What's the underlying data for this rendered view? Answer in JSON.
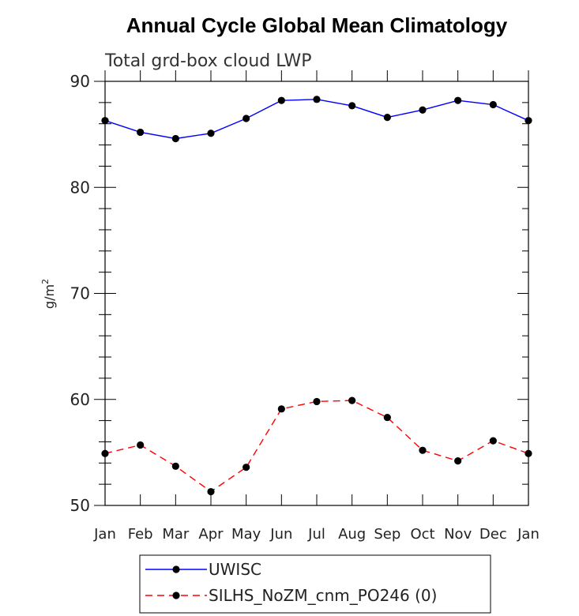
{
  "chart_data": {
    "type": "line",
    "title": "Annual Cycle Global Mean Climatology",
    "subtitle": "Total grd-box cloud LWP",
    "ylabel": "g/m",
    "ylabel_sup": "2",
    "ylim": [
      50,
      90
    ],
    "yticks": [
      50,
      60,
      70,
      80,
      90
    ],
    "categories": [
      "Jan",
      "Feb",
      "Mar",
      "Apr",
      "May",
      "Jun",
      "Jul",
      "Aug",
      "Sep",
      "Oct",
      "Nov",
      "Dec",
      "Jan"
    ],
    "series": [
      {
        "name": "UWISC",
        "color": "#0000ff",
        "dash": "solid",
        "values": [
          86.3,
          85.2,
          84.6,
          85.1,
          86.5,
          88.2,
          88.3,
          87.7,
          86.6,
          87.3,
          88.2,
          87.8,
          86.3
        ]
      },
      {
        "name": "SILHS_NoZM_cnm_PO246 (0)",
        "color": "#ff0000",
        "dash": "dashed",
        "values": [
          54.9,
          55.7,
          53.7,
          51.3,
          53.6,
          59.1,
          59.8,
          59.9,
          58.3,
          55.2,
          54.2,
          56.1,
          54.9
        ]
      }
    ],
    "grid": false,
    "legend_position": "bottom"
  }
}
